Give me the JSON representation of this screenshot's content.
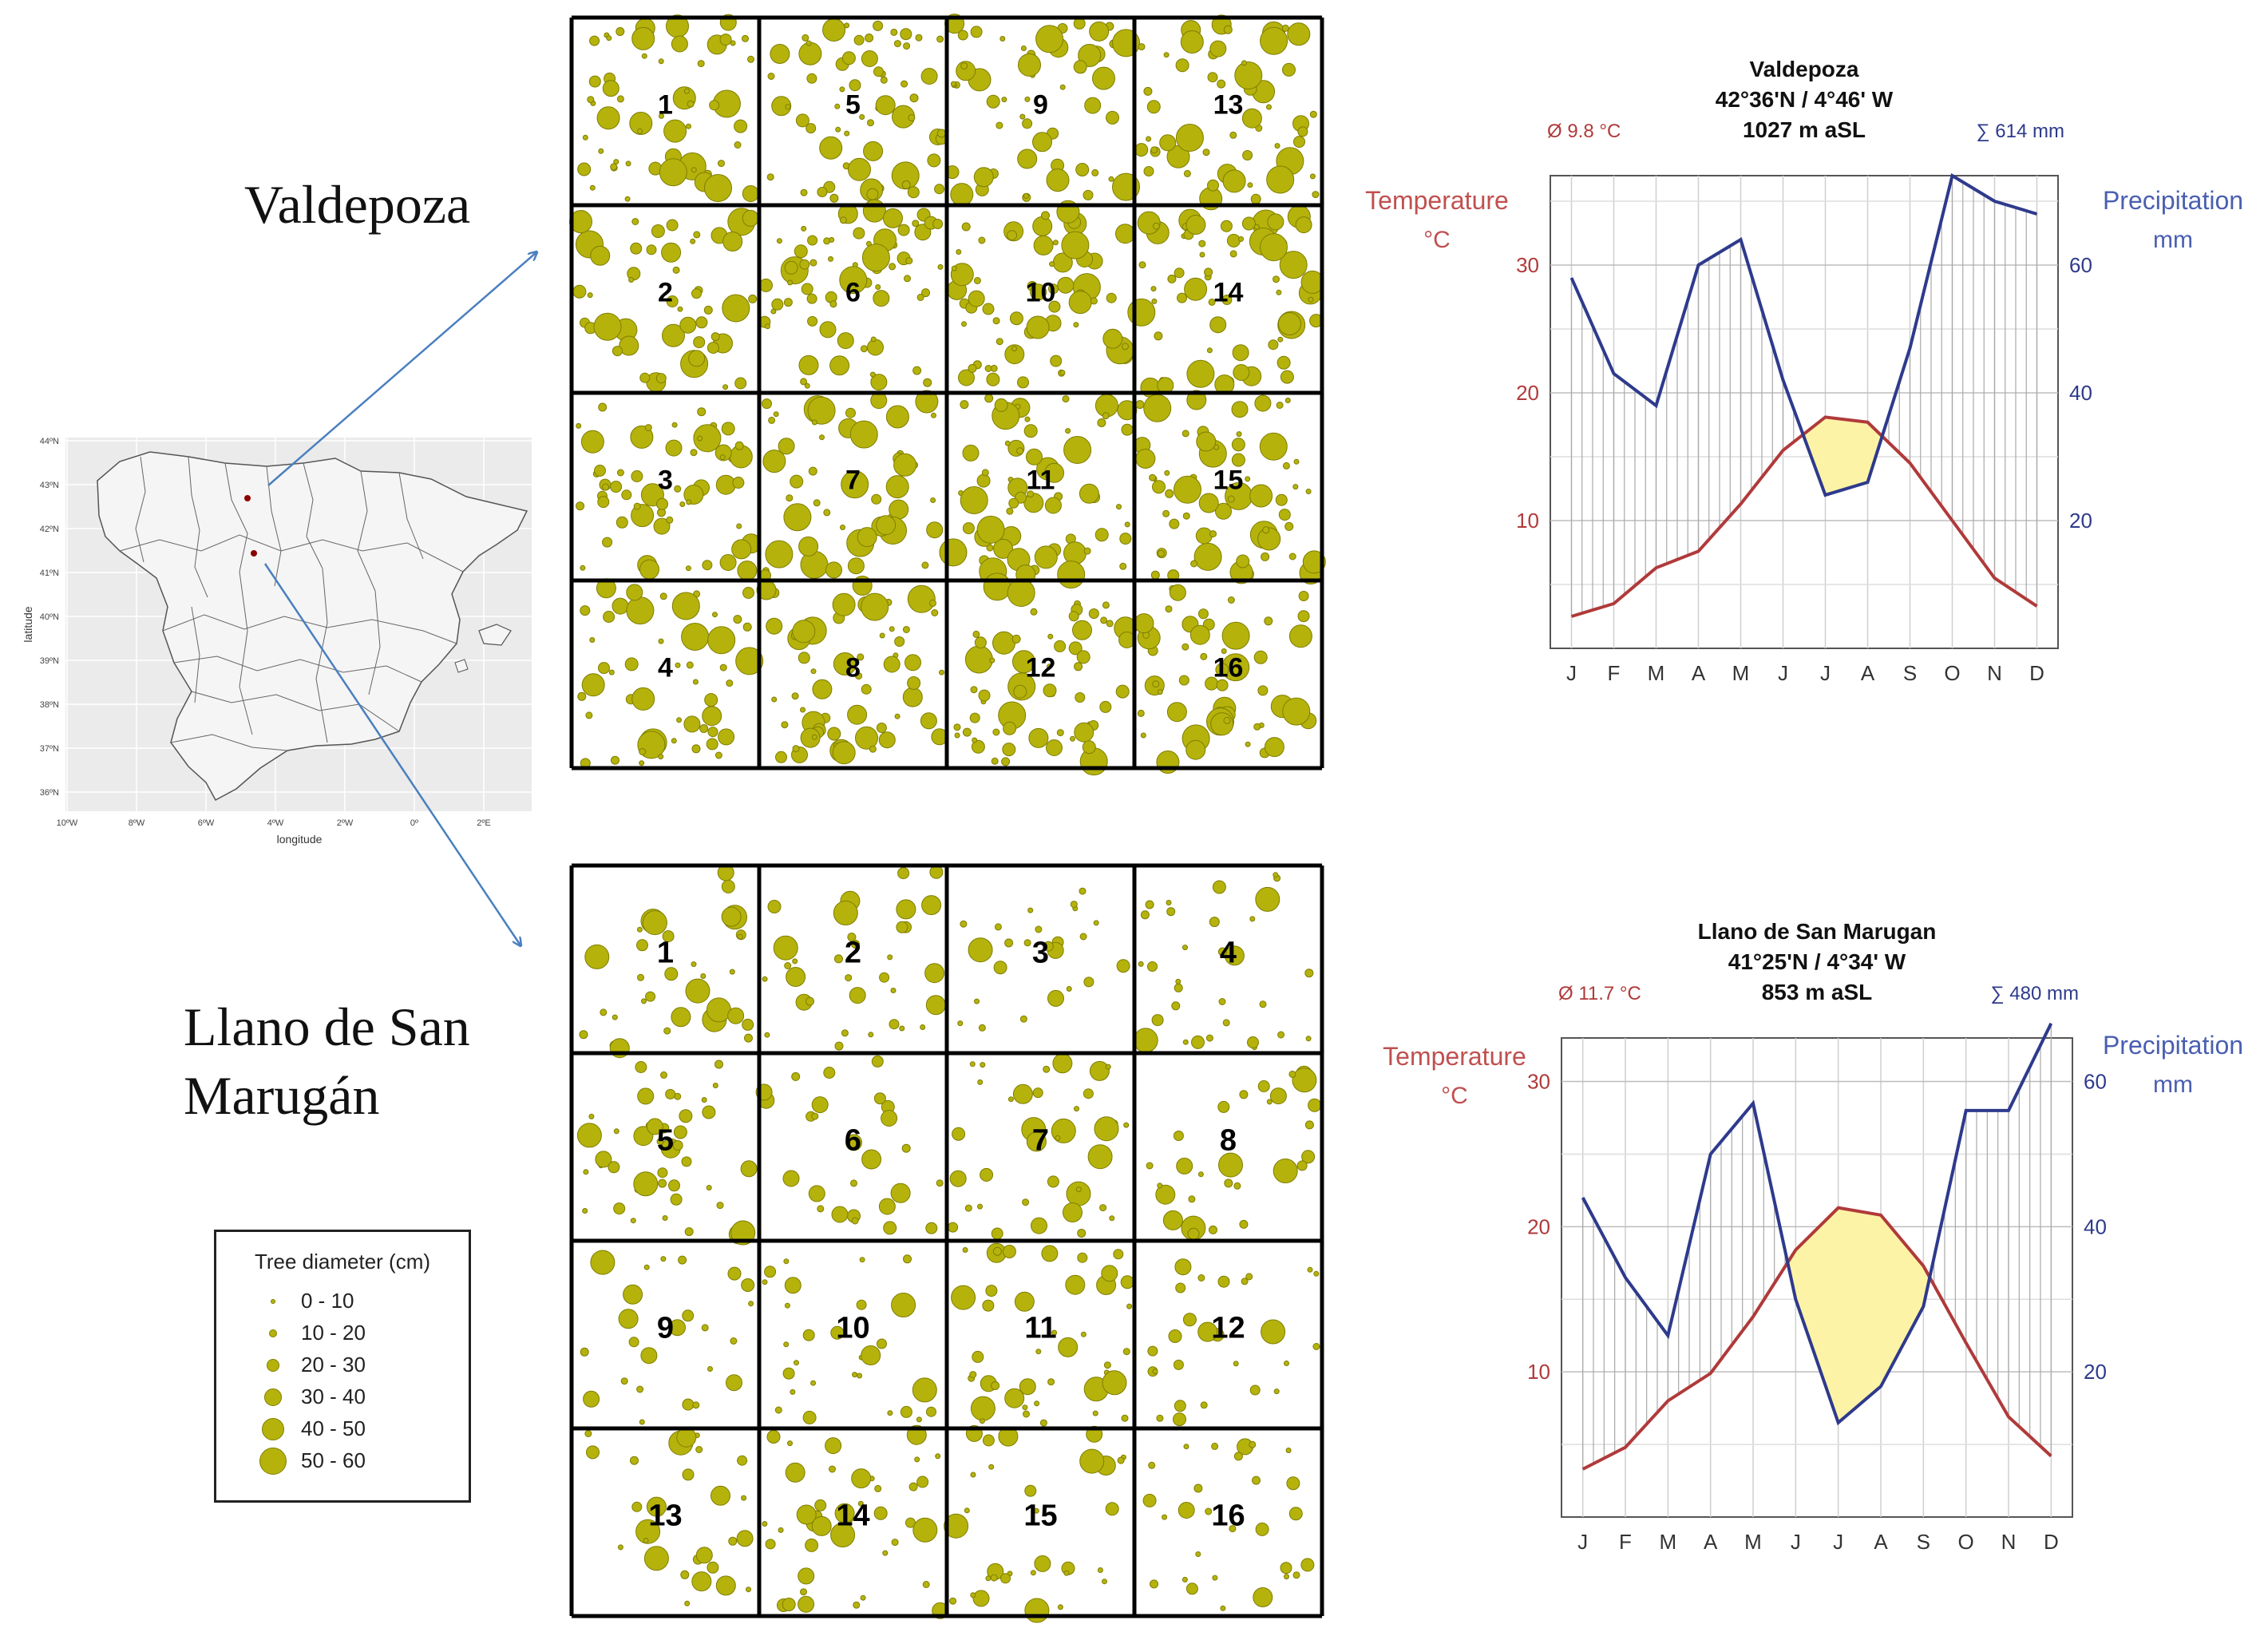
{
  "sites": {
    "valdepoza_label": "Valdepoza",
    "llano_label_line1": "Llano de San",
    "llano_label_line2": "Marugán"
  },
  "map": {
    "xlabel": "longitude",
    "ylabel": "latitude",
    "lat_ticks": [
      "44ºN",
      "43ºN",
      "42ºN",
      "41ºN",
      "40ºN",
      "39ºN",
      "38ºN",
      "37ºN",
      "36ºN"
    ],
    "lon_ticks": [
      "10ºW",
      "8ºW",
      "6ºW",
      "4ºW",
      "2ºW",
      "0º",
      "2ºE"
    ]
  },
  "legend": {
    "title": "Tree diameter (cm)",
    "classes": [
      "0 - 10",
      "10 - 20",
      "20 - 30",
      "30 - 40",
      "40 - 50",
      "50 - 60"
    ]
  },
  "plot_numbers": {
    "valdepoza": [
      "1",
      "5",
      "9",
      "13",
      "2",
      "6",
      "10",
      "14",
      "3",
      "7",
      "11",
      "15",
      "4",
      "8",
      "12",
      "16"
    ],
    "llano": [
      "1",
      "2",
      "3",
      "4",
      "5",
      "6",
      "7",
      "8",
      "9",
      "10",
      "11",
      "12",
      "13",
      "14",
      "15",
      "16"
    ]
  },
  "colors": {
    "tree_fill": "#b5b30b",
    "tree_stroke": "#7f7d00",
    "temperature": "#b03a3a",
    "precipitation": "#2e3a8c",
    "arid_fill": "#fdf3a6",
    "arrow": "#4a7fc0"
  },
  "chart_data": [
    {
      "type": "line",
      "title": "Valdepoza",
      "subtitle_coords": "42°36'N / 4°46' W",
      "subtitle_elev": "1027 m aSL",
      "mean_temp_label": "Ø 9.8 °C",
      "total_precip_label": "∑ 614 mm",
      "ylabel_left_1": "Temperature",
      "ylabel_left_2": "°C",
      "ylabel_right_1": "Precipitation",
      "ylabel_right_2": "mm",
      "categories": [
        "J",
        "F",
        "M",
        "A",
        "M",
        "J",
        "J",
        "A",
        "S",
        "O",
        "N",
        "D"
      ],
      "left_ticks": [
        "30",
        "20",
        "10"
      ],
      "right_ticks": [
        "60",
        "40",
        "20"
      ],
      "ylim_temp": [
        0,
        37
      ],
      "ylim_precip": [
        0,
        74
      ],
      "series": [
        {
          "name": "Temperature",
          "axis": "left",
          "values": [
            2.5,
            3.5,
            6.3,
            7.6,
            11.3,
            15.5,
            18.1,
            17.7,
            14.5,
            10.0,
            5.5,
            3.3
          ]
        },
        {
          "name": "Precipitation",
          "axis": "right",
          "values": [
            58,
            43,
            38,
            60,
            64,
            42,
            24,
            26,
            47,
            74,
            70,
            68
          ]
        }
      ]
    },
    {
      "type": "line",
      "title": "Llano de San Marugan",
      "subtitle_coords": "41°25'N / 4°34' W",
      "subtitle_elev": "853 m aSL",
      "mean_temp_label": "Ø 11.7 °C",
      "total_precip_label": "∑ 480 mm",
      "ylabel_left_1": "Temperature",
      "ylabel_left_2": "°C",
      "ylabel_right_1": "Precipitation",
      "ylabel_right_2": "mm",
      "categories": [
        "J",
        "F",
        "M",
        "A",
        "M",
        "J",
        "J",
        "A",
        "S",
        "O",
        "N",
        "D"
      ],
      "left_ticks": [
        "30",
        "20",
        "10"
      ],
      "right_ticks": [
        "60",
        "40",
        "20"
      ],
      "ylim_temp": [
        0,
        33
      ],
      "ylim_precip": [
        0,
        66
      ],
      "series": [
        {
          "name": "Temperature",
          "axis": "left",
          "values": [
            3.3,
            4.8,
            8.0,
            9.9,
            13.8,
            18.4,
            21.3,
            20.8,
            17.3,
            12.0,
            6.9,
            4.2
          ]
        },
        {
          "name": "Precipitation",
          "axis": "right",
          "values": [
            44,
            33,
            25,
            50,
            57,
            30,
            13,
            18,
            29,
            56,
            56,
            68
          ]
        }
      ]
    }
  ]
}
